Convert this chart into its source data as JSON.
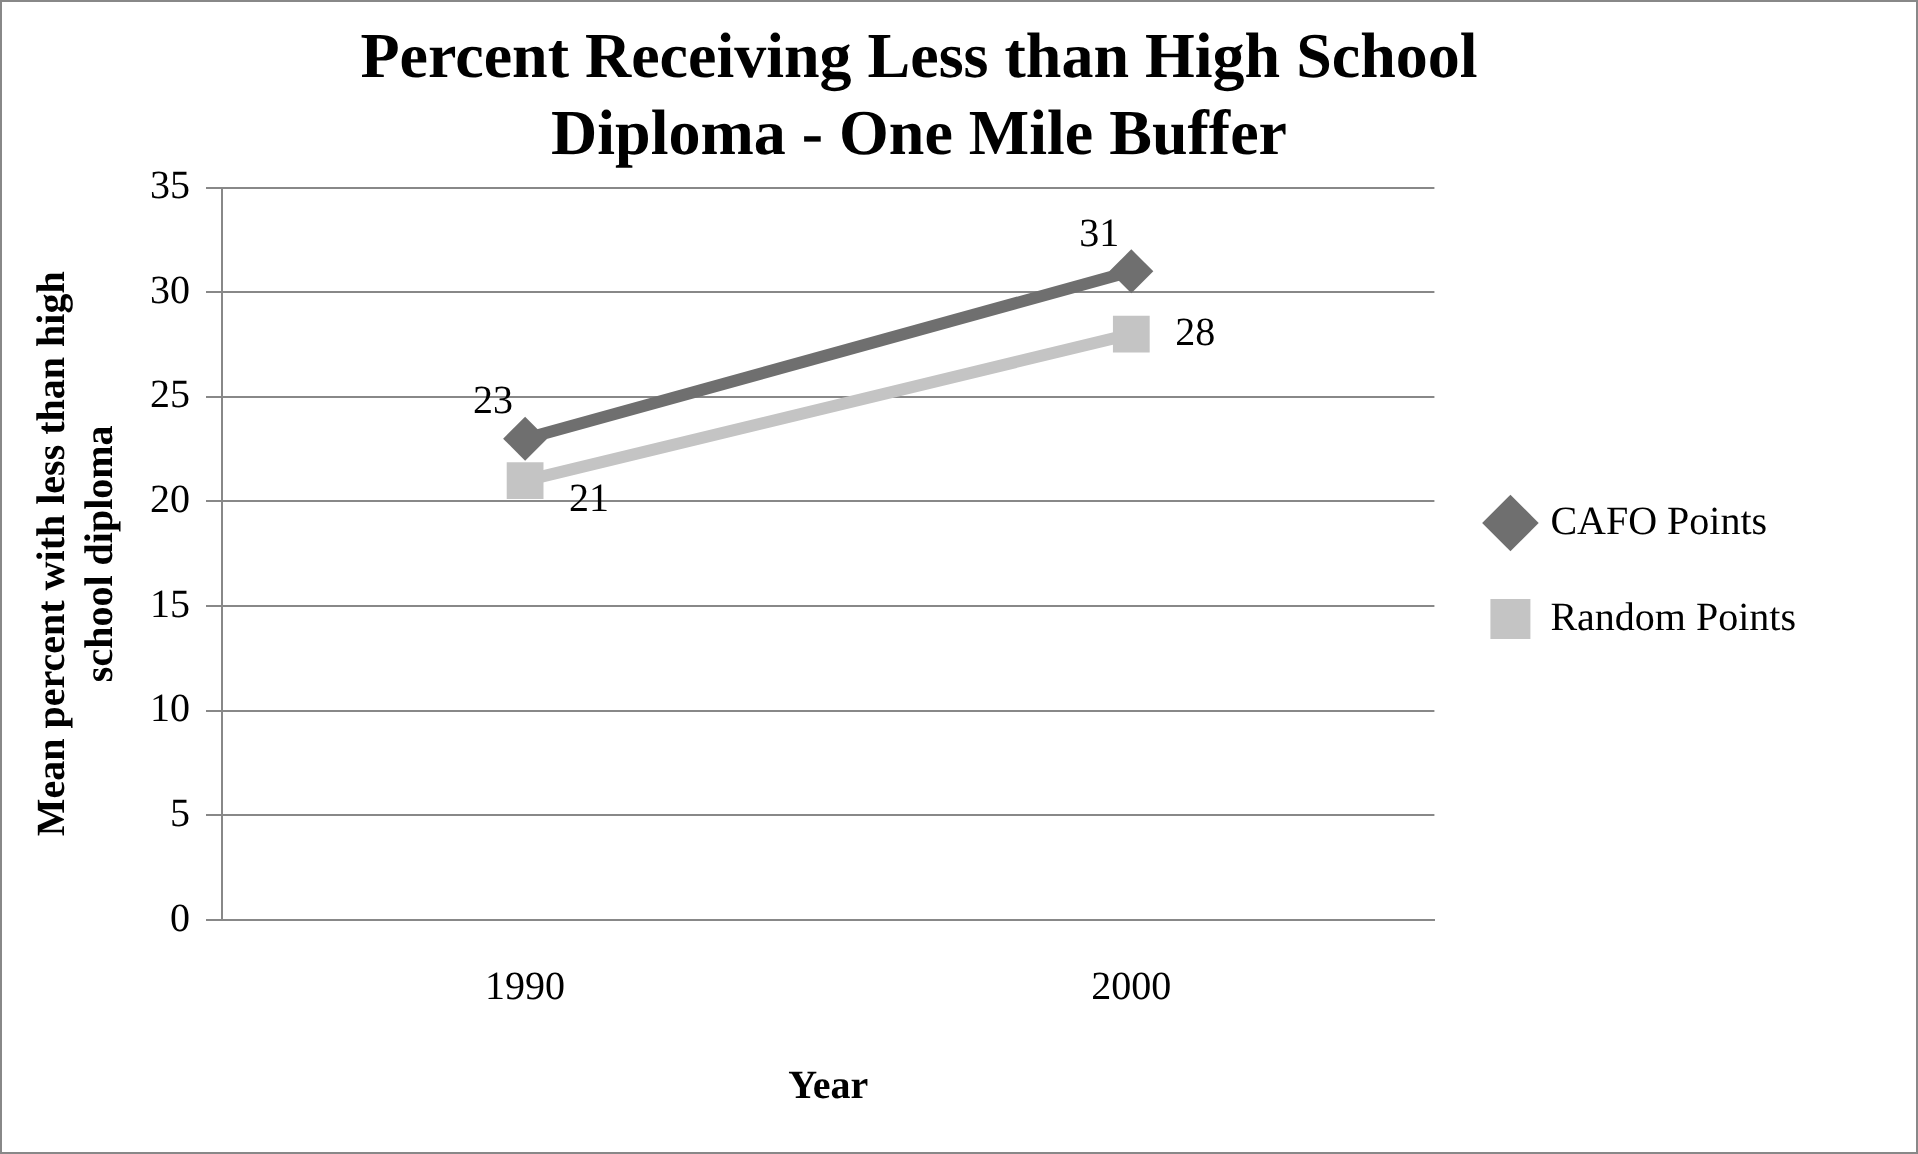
{
  "chart_data": {
    "type": "line",
    "title": "Percent Receiving Less than High School Diploma - One Mile Buffer",
    "xlabel": "Year",
    "ylabel": "Mean percent with less than high school diploma",
    "categories": [
      "1990",
      "2000"
    ],
    "series": [
      {
        "name": "CAFO Points",
        "color": "#6f6f6f",
        "values": [
          23,
          31
        ],
        "marker": "diamond"
      },
      {
        "name": "Random Points",
        "color": "#c4c4c4",
        "values": [
          21,
          28
        ],
        "marker": "square"
      }
    ],
    "ylim": [
      0,
      35
    ],
    "yticks": [
      0,
      5,
      10,
      15,
      20,
      25,
      30,
      35
    ],
    "grid": "y",
    "legend": "right",
    "data_labels": true,
    "line_style": "solid"
  }
}
